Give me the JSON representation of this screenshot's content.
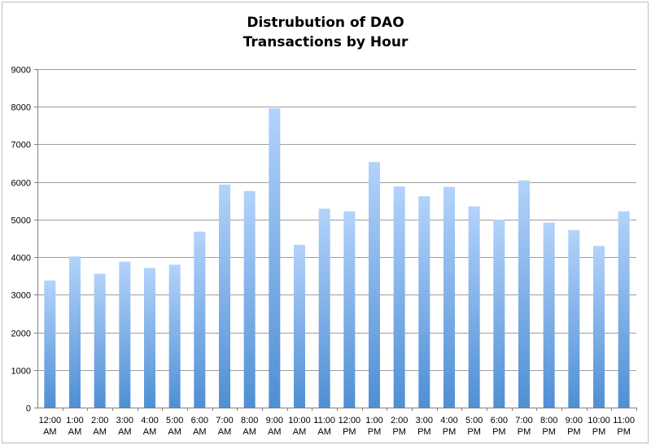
{
  "chart_data": {
    "type": "bar",
    "title_lines": [
      "Distrubution of DAO",
      "Transactions by Hour"
    ],
    "xlabel": "",
    "ylabel": "",
    "ylim": [
      0,
      9000
    ],
    "yticks": [
      0,
      1000,
      2000,
      3000,
      4000,
      5000,
      6000,
      7000,
      8000,
      9000
    ],
    "grid": true,
    "legend": "none",
    "bar_color_top": "#b3d3fb",
    "bar_color_bottom": "#4f8fd4",
    "categories": [
      [
        "12:00",
        "AM"
      ],
      [
        "1:00",
        "AM"
      ],
      [
        "2:00",
        "AM"
      ],
      [
        "3:00",
        "AM"
      ],
      [
        "4:00",
        "AM"
      ],
      [
        "5:00",
        "AM"
      ],
      [
        "6:00",
        "AM"
      ],
      [
        "7:00",
        "AM"
      ],
      [
        "8:00",
        "AM"
      ],
      [
        "9:00",
        "AM"
      ],
      [
        "10:00",
        "AM"
      ],
      [
        "11:00",
        "AM"
      ],
      [
        "12:00",
        "PM"
      ],
      [
        "1:00",
        "PM"
      ],
      [
        "2:00",
        "PM"
      ],
      [
        "3:00",
        "PM"
      ],
      [
        "4:00",
        "PM"
      ],
      [
        "5:00",
        "PM"
      ],
      [
        "6:00",
        "PM"
      ],
      [
        "7:00",
        "PM"
      ],
      [
        "8:00",
        "PM"
      ],
      [
        "9:00",
        "PM"
      ],
      [
        "10:00",
        "PM"
      ],
      [
        "11:00",
        "PM"
      ]
    ],
    "values": [
      3380,
      4020,
      3560,
      3880,
      3710,
      3800,
      4680,
      5930,
      5760,
      7960,
      4330,
      5290,
      5220,
      6530,
      5880,
      5620,
      5870,
      5350,
      5000,
      6040,
      4920,
      4720,
      4300,
      5220
    ]
  }
}
